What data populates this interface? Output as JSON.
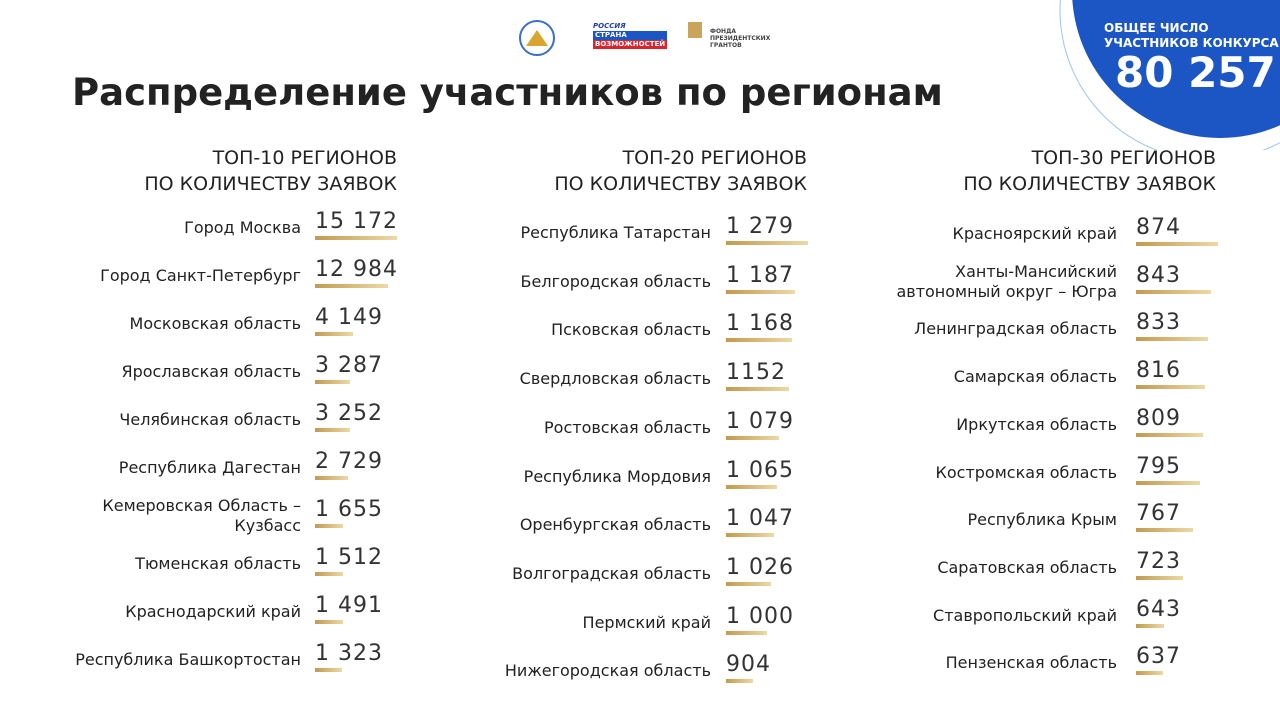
{
  "header": {
    "title": "Распределение участников по регионам",
    "logos": [
      "РОССИЯ",
      "СТРАНА",
      "ВОЗМОЖНОСТЕЙ",
      "ФОНДА",
      "ПРЕЗИДЕНТСКИХ",
      "ГРАНТОВ"
    ],
    "total_caption": [
      "ОБЩЕЕ ЧИСЛО",
      "УЧАСТНИКОВ КОНКУРСА"
    ],
    "total": "80 257"
  },
  "columns": [
    {
      "title": [
        "ТОП-10 РЕГИОНОВ",
        "ПО КОЛИЧЕСТВУ ЗАЯВОК"
      ],
      "rows": [
        {
          "name": [
            "Город Москва"
          ],
          "value": 15172,
          "label": "15 172"
        },
        {
          "name": [
            "Город Санкт-Петербург"
          ],
          "value": 12984,
          "label": "12 984"
        },
        {
          "name": [
            "Московская область"
          ],
          "value": 4149,
          "label": "4 149"
        },
        {
          "name": [
            "Ярославская область"
          ],
          "value": 3287,
          "label": "3 287"
        },
        {
          "name": [
            "Челябинская область"
          ],
          "value": 3252,
          "label": "3 252"
        },
        {
          "name": [
            "Республика Дагестан"
          ],
          "value": 2729,
          "label": "2 729"
        },
        {
          "name": [
            "Кемеровская Область –",
            "Кузбасс"
          ],
          "value": 1655,
          "label": "1 655"
        },
        {
          "name": [
            "Тюменская область"
          ],
          "value": 1512,
          "label": "1 512"
        },
        {
          "name": [
            "Краснодарский край"
          ],
          "value": 1491,
          "label": "1 491"
        },
        {
          "name": [
            "Республика Башкортостан"
          ],
          "value": 1323,
          "label": "1 323"
        }
      ]
    },
    {
      "title": [
        "ТОП-20 РЕГИОНОВ",
        "ПО КОЛИЧЕСТВУ ЗАЯВОК"
      ],
      "rows": [
        {
          "name": [
            "Республика Татарстан"
          ],
          "value": 1279,
          "label": "1 279"
        },
        {
          "name": [
            "Белгородская область"
          ],
          "value": 1187,
          "label": "1 187"
        },
        {
          "name": [
            "Псковская область"
          ],
          "value": 1168,
          "label": "1 168"
        },
        {
          "name": [
            "Свердловская область"
          ],
          "value": 1152,
          "label": "1152"
        },
        {
          "name": [
            "Ростовская область"
          ],
          "value": 1079,
          "label": "1 079"
        },
        {
          "name": [
            "Республика Мордовия"
          ],
          "value": 1065,
          "label": "1 065"
        },
        {
          "name": [
            "Оренбургская область"
          ],
          "value": 1047,
          "label": "1 047"
        },
        {
          "name": [
            "Волгоградская область"
          ],
          "value": 1026,
          "label": "1 026"
        },
        {
          "name": [
            "Пермский край"
          ],
          "value": 1000,
          "label": "1 000"
        },
        {
          "name": [
            "Нижегородская область"
          ],
          "value": 904,
          "label": "904"
        }
      ]
    },
    {
      "title": [
        "ТОП-30 РЕГИОНОВ",
        "ПО КОЛИЧЕСТВУ ЗАЯВОК"
      ],
      "rows": [
        {
          "name": [
            "Красноярский край"
          ],
          "value": 874,
          "label": "874"
        },
        {
          "name": [
            "Ханты-Мансийский",
            "автономный округ – Югра"
          ],
          "value": 843,
          "label": "843"
        },
        {
          "name": [
            "Ленинградская область"
          ],
          "value": 833,
          "label": "833"
        },
        {
          "name": [
            "Самарская область"
          ],
          "value": 816,
          "label": "816"
        },
        {
          "name": [
            "Иркутская область"
          ],
          "value": 809,
          "label": "809"
        },
        {
          "name": [
            "Костромская область"
          ],
          "value": 795,
          "label": "795"
        },
        {
          "name": [
            "Республика Крым"
          ],
          "value": 767,
          "label": "767"
        },
        {
          "name": [
            "Саратовская область"
          ],
          "value": 723,
          "label": "723"
        },
        {
          "name": [
            "Ставропольский край"
          ],
          "value": 643,
          "label": "643"
        },
        {
          "name": [
            "Пензенская область"
          ],
          "value": 637,
          "label": "637"
        }
      ]
    }
  ]
}
